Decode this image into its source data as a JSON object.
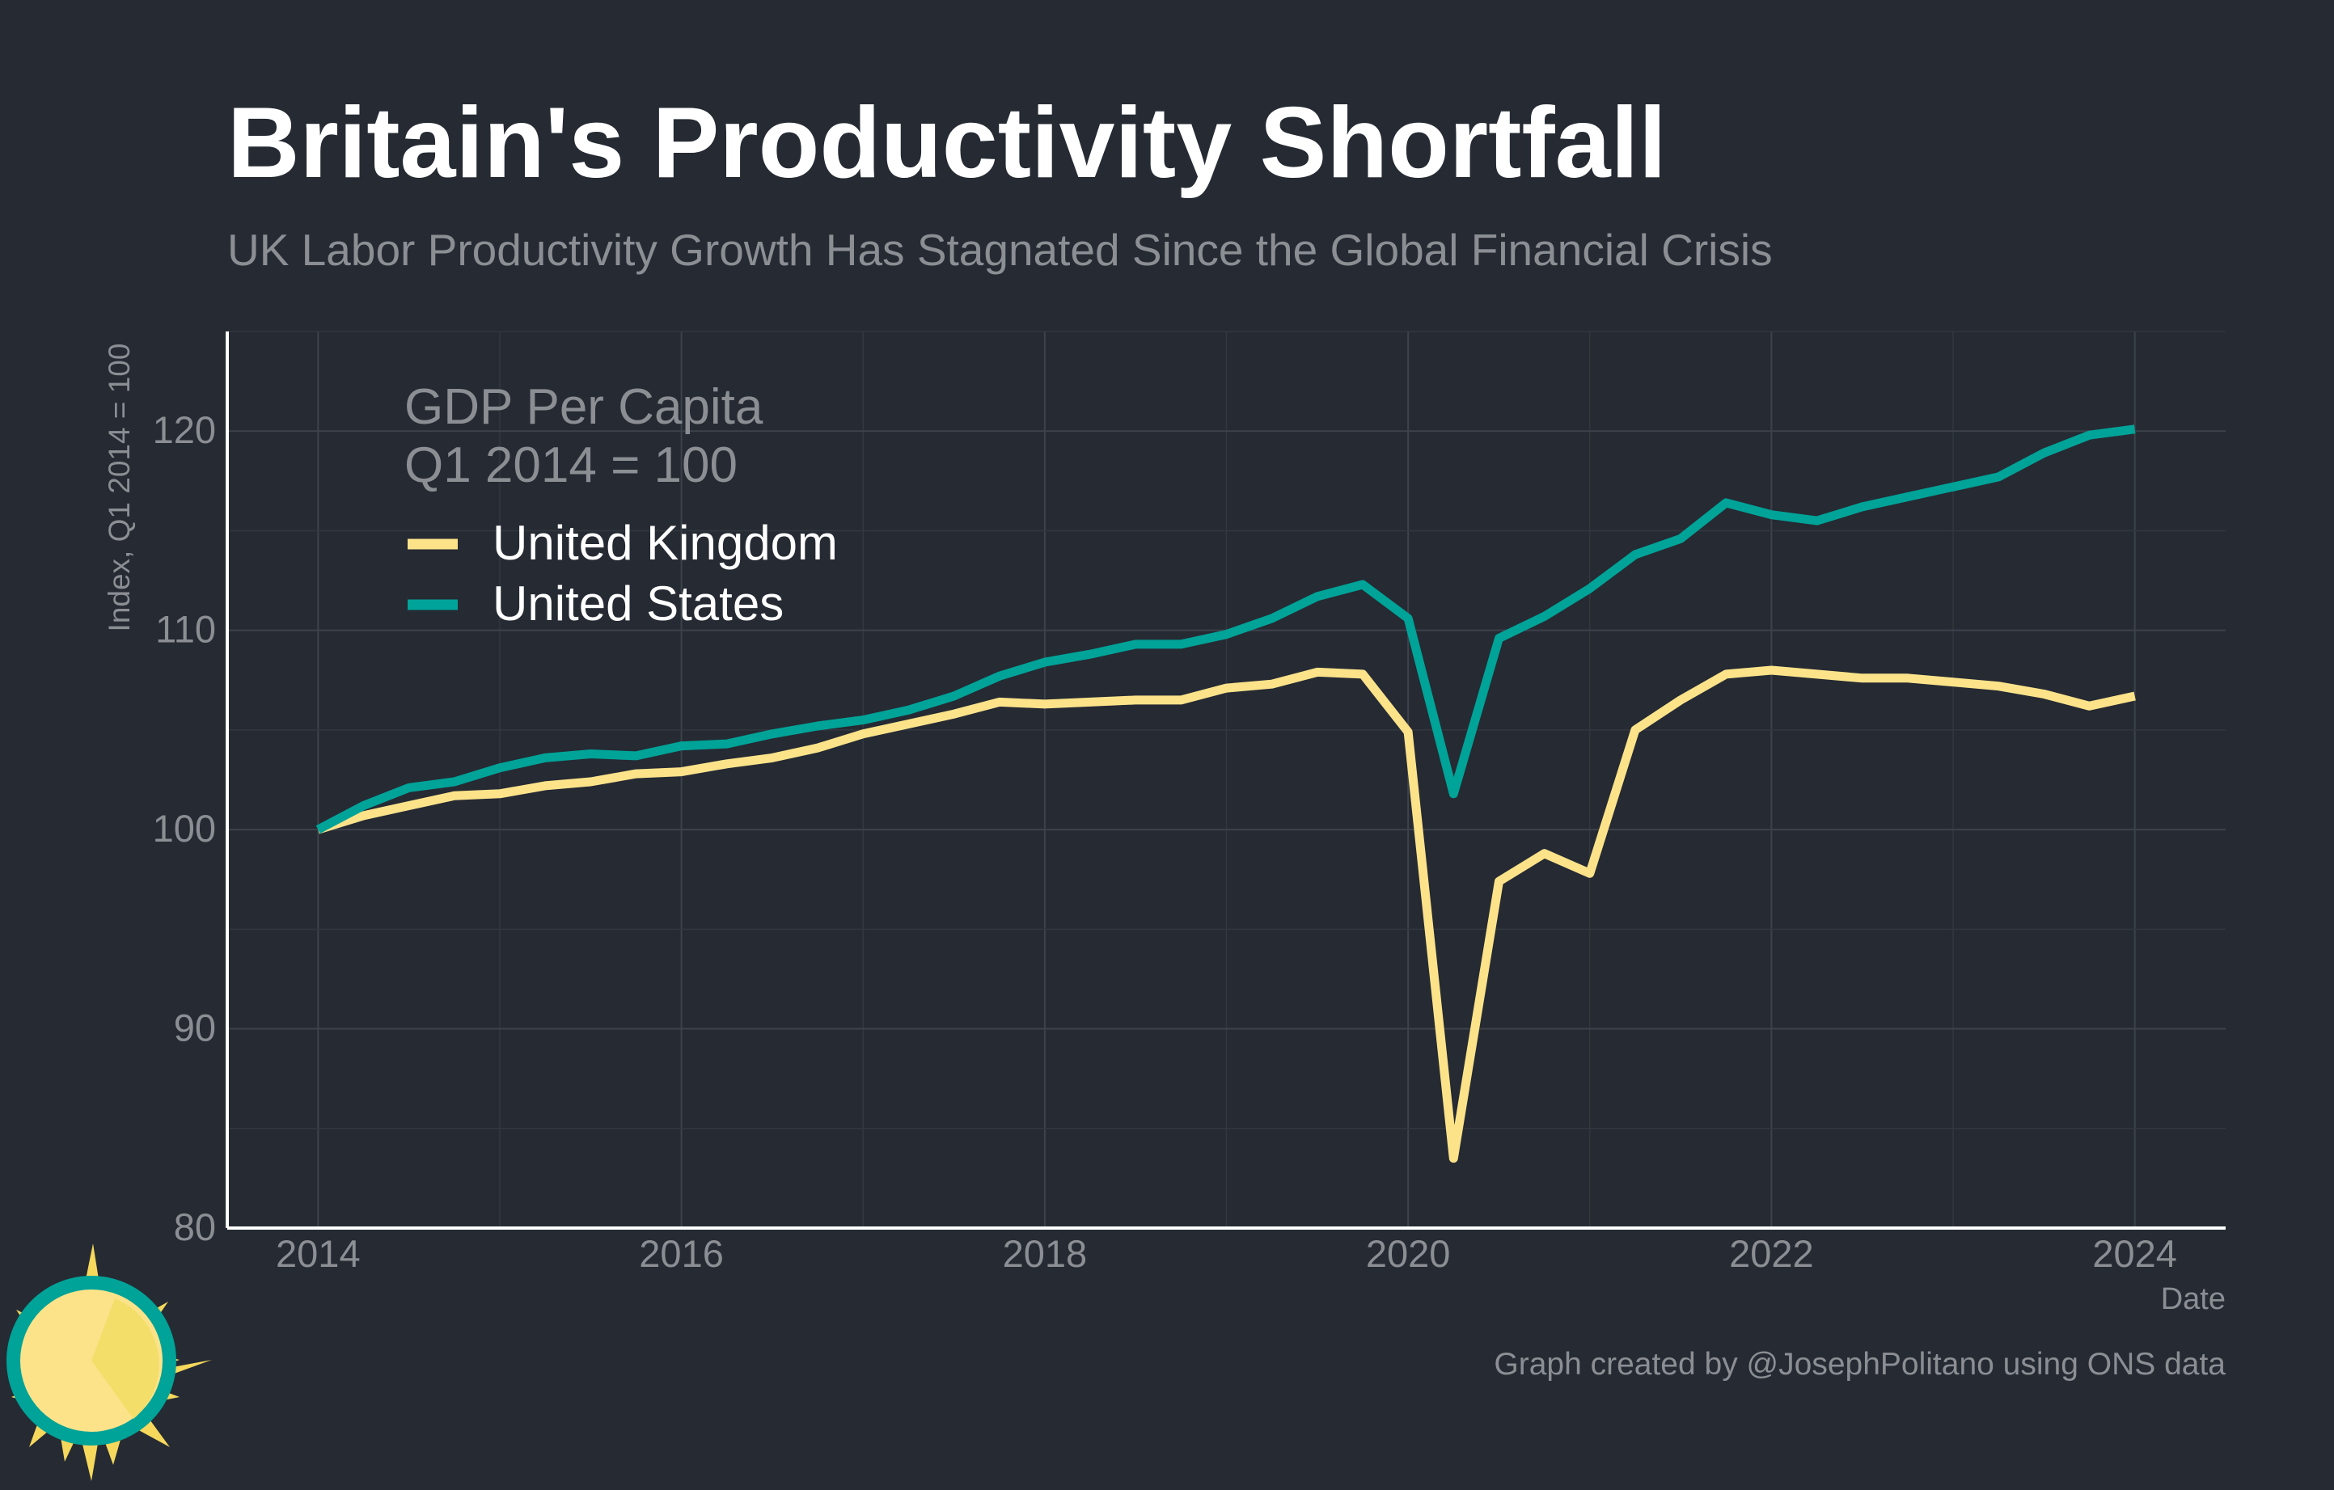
{
  "chart_data": {
    "type": "line",
    "title": "Britain's Productivity Shortfall",
    "subtitle": "UK Labor Productivity Growth Has Stagnated Since the Global Financial Crisis",
    "xlabel": "Date",
    "ylabel": "Index, Q1 2014 = 100",
    "caption": "Graph created by @JosephPolitano using ONS data",
    "legend": {
      "title_lines": [
        "GDP Per Capita",
        "Q1 2014 = 100"
      ],
      "placement": "top-left"
    },
    "xlim": [
      2013.5,
      2024.5
    ],
    "ylim": [
      80,
      125
    ],
    "x_ticks": [
      2014,
      2016,
      2018,
      2020,
      2022,
      2024
    ],
    "y_ticks": [
      80,
      90,
      100,
      110,
      120
    ],
    "grid": true,
    "x": [
      2014.0,
      2014.25,
      2014.5,
      2014.75,
      2015.0,
      2015.25,
      2015.5,
      2015.75,
      2016.0,
      2016.25,
      2016.5,
      2016.75,
      2017.0,
      2017.25,
      2017.5,
      2017.75,
      2018.0,
      2018.25,
      2018.5,
      2018.75,
      2019.0,
      2019.25,
      2019.5,
      2019.75,
      2020.0,
      2020.25,
      2020.5,
      2020.75,
      2021.0,
      2021.25,
      2021.5,
      2021.75,
      2022.0,
      2022.25,
      2022.5,
      2022.75,
      2023.0,
      2023.25,
      2023.5,
      2023.75,
      2024.0
    ],
    "series": [
      {
        "name": "United Kingdom",
        "color": "#fce38a",
        "values": [
          100.0,
          100.7,
          101.2,
          101.7,
          101.8,
          102.2,
          102.4,
          102.8,
          102.9,
          103.3,
          103.6,
          104.1,
          104.8,
          105.3,
          105.8,
          106.4,
          106.3,
          106.4,
          106.5,
          106.5,
          107.1,
          107.3,
          107.9,
          107.8,
          104.9,
          83.5,
          97.4,
          98.8,
          97.8,
          105.0,
          106.5,
          107.8,
          108.0,
          107.8,
          107.6,
          107.6,
          107.4,
          107.2,
          106.8,
          106.2,
          106.7
        ]
      },
      {
        "name": "United States",
        "color": "#00a398",
        "values": [
          100.0,
          101.2,
          102.1,
          102.4,
          103.1,
          103.6,
          103.8,
          103.7,
          104.2,
          104.3,
          104.8,
          105.2,
          105.5,
          106.0,
          106.7,
          107.7,
          108.4,
          108.8,
          109.3,
          109.3,
          109.8,
          110.6,
          111.7,
          112.3,
          110.6,
          101.8,
          109.6,
          110.7,
          112.1,
          113.8,
          114.6,
          116.4,
          115.8,
          115.5,
          116.2,
          116.7,
          117.2,
          117.7,
          118.9,
          119.8,
          120.1
        ]
      }
    ]
  }
}
